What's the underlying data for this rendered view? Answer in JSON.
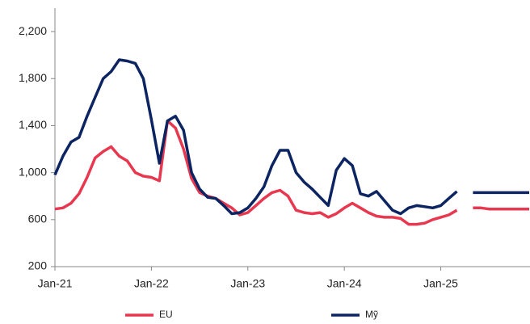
{
  "chart_data": {
    "type": "line",
    "x": [
      "2021-01",
      "2021-02",
      "2021-03",
      "2021-04",
      "2021-05",
      "2021-06",
      "2021-07",
      "2021-08",
      "2021-09",
      "2021-10",
      "2021-11",
      "2021-12",
      "2022-01",
      "2022-02",
      "2022-03",
      "2022-04",
      "2022-05",
      "2022-06",
      "2022-07",
      "2022-08",
      "2022-09",
      "2022-10",
      "2022-11",
      "2022-12",
      "2023-01",
      "2023-02",
      "2023-03",
      "2023-04",
      "2023-05",
      "2023-06",
      "2023-07",
      "2023-08",
      "2023-09",
      "2023-10",
      "2023-11",
      "2023-12",
      "2024-01",
      "2024-02",
      "2024-03",
      "2024-04",
      "2024-05",
      "2024-06",
      "2024-07",
      "2024-08",
      "2024-09",
      "2024-10",
      "2024-11",
      "2024-12",
      "2025-01",
      "2025-02",
      "2025-03",
      "2025-04",
      "2025-05",
      "2025-06",
      "2025-07",
      "2025-08",
      "2025-09",
      "2025-10",
      "2025-11",
      "2025-12"
    ],
    "series": [
      {
        "name": "EU",
        "color": "#e8384f",
        "values": [
          690,
          700,
          740,
          820,
          960,
          1125,
          1180,
          1220,
          1140,
          1100,
          1000,
          970,
          960,
          930,
          1440,
          1380,
          1200,
          950,
          830,
          800,
          780,
          740,
          700,
          640,
          660,
          720,
          780,
          830,
          850,
          800,
          680,
          660,
          650,
          660,
          620,
          650,
          700,
          740,
          700,
          660,
          630,
          620,
          620,
          610,
          560,
          560,
          570,
          600,
          620,
          640,
          680,
          null,
          700,
          700,
          690,
          690,
          690,
          690,
          690,
          690
        ]
      },
      {
        "name": "Mỹ",
        "color": "#0c2461",
        "values": [
          980,
          1140,
          1260,
          1300,
          1480,
          1640,
          1800,
          1860,
          1960,
          1950,
          1930,
          1800,
          1450,
          1080,
          1440,
          1480,
          1360,
          1000,
          860,
          790,
          780,
          720,
          650,
          660,
          700,
          780,
          880,
          1060,
          1190,
          1190,
          1000,
          920,
          860,
          790,
          720,
          1020,
          1120,
          1060,
          820,
          800,
          840,
          760,
          680,
          650,
          700,
          720,
          710,
          700,
          720,
          780,
          840,
          null,
          830,
          830,
          830,
          830,
          830,
          830,
          830,
          830
        ]
      }
    ],
    "xlim": [
      "2021-01",
      "2025-12"
    ],
    "xticks": [
      {
        "value": "2021-01",
        "label": "Jan-21"
      },
      {
        "value": "2022-01",
        "label": "Jan-22"
      },
      {
        "value": "2023-01",
        "label": "Jan-23"
      },
      {
        "value": "2024-01",
        "label": "Jan-24"
      },
      {
        "value": "2025-01",
        "label": "Jan-25"
      }
    ],
    "ylim": [
      200,
      2400
    ],
    "yticks": [
      200,
      600,
      {
        "value": 1000,
        "label": "1,000"
      },
      {
        "value": 1400,
        "label": "1,400"
      },
      {
        "value": 1800,
        "label": "1,800"
      },
      {
        "value": 2200,
        "label": "2,200"
      }
    ],
    "grid": false,
    "legend": "bottom"
  }
}
